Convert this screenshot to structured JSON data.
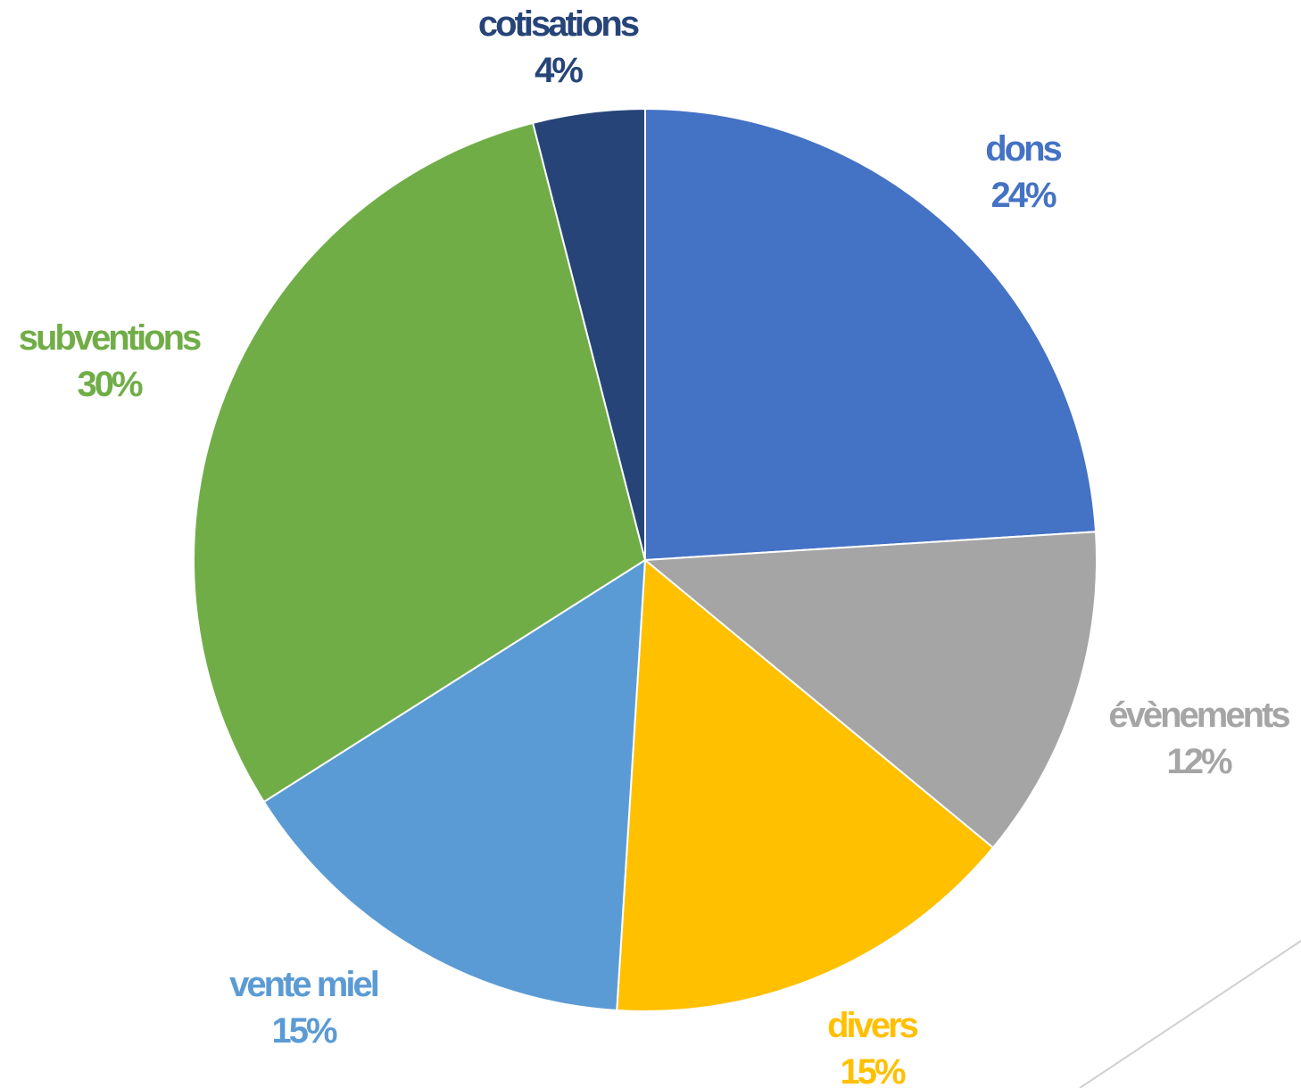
{
  "chart_data": {
    "type": "pie",
    "title": "",
    "slices": [
      {
        "label": "dons",
        "value": 24,
        "value_label": "24%",
        "color": "#4472C4"
      },
      {
        "label": "évènements",
        "value": 12,
        "value_label": "12%",
        "color": "#A5A5A5"
      },
      {
        "label": "divers",
        "value": 15,
        "value_label": "15%",
        "color": "#FFC000"
      },
      {
        "label": "vente miel",
        "value": 15,
        "value_label": "15%",
        "color": "#5B9BD5"
      },
      {
        "label": "subventions",
        "value": 30,
        "value_label": "30%",
        "color": "#70AD47"
      },
      {
        "label": "cotisations",
        "value": 4,
        "value_label": "4%",
        "color": "#264478"
      }
    ],
    "start_angle": "12 o'clock",
    "direction": "clockwise",
    "legend": "none",
    "data_labels": "outside, category name and percentage"
  }
}
